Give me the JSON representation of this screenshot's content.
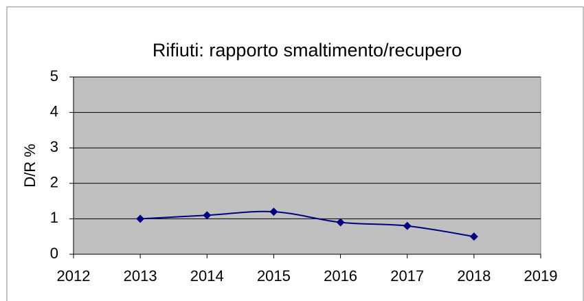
{
  "chart_data": {
    "type": "line",
    "title": "Rifiuti: rapporto smaltimento/recupero",
    "y_label": "D/R %",
    "x": [
      2013,
      2014,
      2015,
      2016,
      2017,
      2018
    ],
    "series": [
      {
        "name": "D/R %",
        "color": "#000080",
        "values": [
          1.0,
          1.1,
          1.2,
          0.9,
          0.8,
          0.5
        ]
      }
    ],
    "xlim": [
      2012,
      2019
    ],
    "xticks": [
      2012,
      2013,
      2014,
      2015,
      2016,
      2017,
      2018,
      2019
    ],
    "ylim": [
      0,
      5
    ],
    "yticks": [
      0,
      1,
      2,
      3,
      4,
      5
    ],
    "grid": true,
    "smooth": true,
    "plot_background": "#c0c0c0"
  }
}
